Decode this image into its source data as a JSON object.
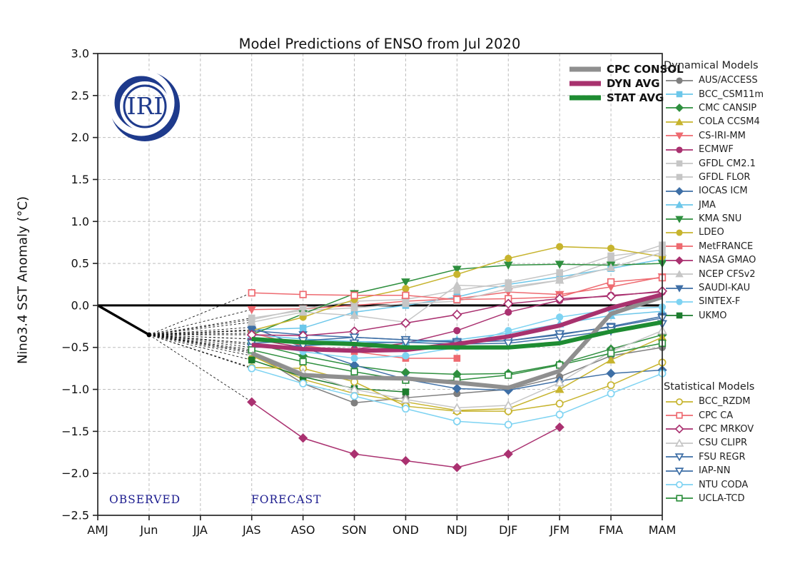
{
  "title": "Model Predictions of ENSO from Jul 2020",
  "logo_text": "IRI",
  "logo_color": "#1e3a8c",
  "labels": {
    "observed": "OBSERVED",
    "forecast": "FORECAST"
  },
  "chart_data": {
    "type": "line",
    "title": "Model Predictions of ENSO from Jul 2020",
    "xlabel": "",
    "ylabel": "Nino3.4 SST Anomaly (°C)",
    "x_categories": [
      "AMJ",
      "Jun",
      "JJA",
      "JAS",
      "ASO",
      "SON",
      "OND",
      "NDJ",
      "DJF",
      "JFM",
      "FMA",
      "MAM"
    ],
    "ylim": [
      -2.5,
      3.0
    ],
    "ytick_labels": [
      "3.0",
      "2.5",
      "2.0",
      "1.5",
      "1.0",
      "0.5",
      "0.0",
      "−0.5",
      "−1.0",
      "−1.5",
      "−2.0",
      "−2.5"
    ],
    "grid": "dashed",
    "zero_line": true,
    "forecast_start_index": 3,
    "observed": {
      "x": [
        "AMJ",
        "Jun"
      ],
      "values": [
        0.0,
        -0.35
      ],
      "color": "#000000"
    },
    "averages": [
      {
        "name": "CPC CONSOL",
        "color": "#8f8f8f",
        "values": [
          -0.57,
          -0.83,
          -0.86,
          -0.87,
          -0.92,
          -0.98,
          -0.78,
          -0.1,
          0.1
        ]
      },
      {
        "name": "DYN AVG",
        "color": "#a8326e",
        "values": [
          -0.47,
          -0.52,
          -0.54,
          -0.53,
          -0.46,
          -0.37,
          -0.24,
          -0.03,
          0.13
        ]
      },
      {
        "name": "STAT AVG",
        "color": "#1e8c32",
        "values": [
          -0.4,
          -0.44,
          -0.46,
          -0.5,
          -0.5,
          -0.5,
          -0.45,
          -0.31,
          -0.2
        ]
      }
    ],
    "dynamical": {
      "header": "Dynamical Models",
      "models": [
        {
          "name": "AUS/ACCESS",
          "color": "#7f7f7f",
          "marker": "circle",
          "open": false,
          "values": [
            -0.55,
            -0.93,
            -1.16,
            -1.1,
            -1.05,
            -1.0,
            -0.85,
            -0.6,
            -0.5
          ]
        },
        {
          "name": "BCC_CSM11m",
          "color": "#6cc7ea",
          "marker": "square",
          "open": false,
          "values": [
            -0.29,
            -0.27,
            -0.08,
            0.0,
            0.1,
            0.25,
            0.34,
            0.44,
            0.55
          ]
        },
        {
          "name": "CMC CANSIP",
          "color": "#2e8f3e",
          "marker": "diamond",
          "open": false,
          "values": [
            -0.45,
            -0.6,
            -0.72,
            -0.8,
            -0.82,
            -0.81,
            -0.7,
            -0.52,
            -0.35
          ]
        },
        {
          "name": "COLA CCSM4",
          "color": "#c7b42e",
          "marker": "triangle-up",
          "open": false,
          "values": [
            -0.6,
            -0.88,
            -1.05,
            -1.15,
            -1.25,
            -1.23,
            -1.0,
            -0.65,
            -0.38
          ]
        },
        {
          "name": "CS-IRI-MM",
          "color": "#ee6a70",
          "marker": "triangle-down",
          "open": false,
          "values": [
            -0.05,
            -0.04,
            0.0,
            0.05,
            0.08,
            0.16,
            0.13,
            0.22,
            0.34
          ]
        },
        {
          "name": "ECMWF",
          "color": "#aa3170",
          "marker": "circle",
          "open": false,
          "values": [
            -0.4,
            -0.5,
            -0.52,
            -0.45,
            -0.3,
            -0.08,
            0.06,
            0.12,
            0.16
          ]
        },
        {
          "name": "GFDL CM2.1",
          "color": "#c6c6c6",
          "marker": "square",
          "open": false,
          "values": [
            -0.15,
            -0.06,
            -0.03,
            0.02,
            0.05,
            0.2,
            0.3,
            0.52,
            0.72
          ]
        },
        {
          "name": "GFDL FLOR",
          "color": "#c6c6c6",
          "marker": "square",
          "open": false,
          "values": [
            -0.17,
            -0.04,
            0.05,
            0.07,
            0.18,
            0.27,
            0.39,
            0.59,
            0.66
          ]
        },
        {
          "name": "IOCAS ICM",
          "color": "#3e6fa6",
          "marker": "diamond",
          "open": false,
          "values": [
            -0.26,
            -0.5,
            -0.71,
            -0.88,
            -0.99,
            -1.01,
            -0.9,
            -0.81,
            -0.77
          ]
        },
        {
          "name": "JMA",
          "color": "#6cc7ea",
          "marker": "triangle-up",
          "open": false,
          "values": [
            -0.35,
            -0.4,
            -0.43,
            -0.44,
            -0.41,
            -0.33,
            -0.22,
            -0.12,
            -0.07
          ]
        },
        {
          "name": "KMA SNU",
          "color": "#2e8f3e",
          "marker": "triangle-down",
          "open": false,
          "values": [
            -0.35,
            -0.1,
            0.14,
            0.28,
            0.43,
            0.48,
            0.49,
            0.48,
            0.5
          ]
        },
        {
          "name": "LDEO",
          "color": "#c7b42e",
          "marker": "circle",
          "open": false,
          "values": [
            -0.3,
            -0.14,
            0.07,
            0.2,
            0.37,
            0.56,
            0.7,
            0.68,
            0.58
          ]
        },
        {
          "name": "MetFRANCE",
          "color": "#ee6a70",
          "marker": "square",
          "open": false,
          "values": [
            -0.33,
            -0.48,
            -0.55,
            -0.63,
            -0.63
          ]
        },
        {
          "name": "NASA GMAO",
          "color": "#aa3170",
          "marker": "diamond",
          "open": false,
          "values": [
            -1.15,
            -1.58,
            -1.77,
            -1.85,
            -1.93,
            -1.77,
            -1.45
          ]
        },
        {
          "name": "NCEP CFSv2",
          "color": "#c6c6c6",
          "marker": "triangle-up",
          "open": false,
          "values": [
            -0.2,
            -0.08,
            -0.12,
            -0.2,
            0.24,
            0.22,
            0.3,
            0.45,
            0.63
          ]
        },
        {
          "name": "SAUDI-KAU",
          "color": "#3e6fa6",
          "marker": "triangle-down",
          "open": false,
          "values": [
            -0.3,
            -0.35,
            -0.38,
            -0.41,
            -0.43,
            -0.42,
            -0.35,
            -0.25,
            -0.13
          ]
        },
        {
          "name": "SINTEX-F",
          "color": "#7ed3f2",
          "marker": "circle",
          "open": false,
          "values": [
            -0.45,
            -0.55,
            -0.63,
            -0.6,
            -0.5,
            -0.3,
            -0.14,
            -0.05,
            -0.02
          ]
        },
        {
          "name": "UKMO",
          "color": "#1d7c2e",
          "marker": "square",
          "open": false,
          "values": [
            -0.65,
            -0.85,
            -0.99,
            -1.03
          ]
        }
      ]
    },
    "statistical": {
      "header": "Statistical Models",
      "models": [
        {
          "name": "BCC_RZDM",
          "color": "#c7b42e",
          "marker": "circle",
          "open": true,
          "values": [
            -0.74,
            -0.75,
            -0.91,
            -1.2,
            -1.26,
            -1.26,
            -1.17,
            -0.95,
            -0.68
          ]
        },
        {
          "name": "CPC CA",
          "color": "#ee6a70",
          "marker": "square",
          "open": true,
          "values": [
            0.15,
            0.13,
            0.12,
            0.12,
            0.07,
            0.08,
            0.1,
            0.28,
            0.33
          ]
        },
        {
          "name": "CPC MRKOV",
          "color": "#aa3170",
          "marker": "diamond",
          "open": true,
          "values": [
            -0.35,
            -0.36,
            -0.31,
            -0.21,
            -0.11,
            0.02,
            0.08,
            0.11,
            0.17
          ]
        },
        {
          "name": "CSU CLIPR",
          "color": "#c6c6c6",
          "marker": "triangle-up",
          "open": true,
          "values": [
            -0.55,
            -0.8,
            -1.0,
            -1.12,
            -1.22,
            -1.19,
            -0.92,
            -0.55,
            -0.3
          ]
        },
        {
          "name": "FSU REGR",
          "color": "#3e6fa6",
          "marker": "triangle-down",
          "open": true,
          "values": [
            -0.45,
            -0.42,
            -0.38,
            -0.41,
            -0.44,
            -0.42,
            -0.34,
            -0.26,
            -0.15
          ]
        },
        {
          "name": "IAP-NN",
          "color": "#3e6fa6",
          "marker": "triangle-down",
          "open": true,
          "values": [
            -0.5,
            -0.48,
            -0.45,
            -0.44,
            -0.46,
            -0.45,
            -0.38,
            -0.3,
            -0.22
          ]
        },
        {
          "name": "NTU CODA",
          "color": "#7ed3f2",
          "marker": "circle",
          "open": true,
          "values": [
            -0.75,
            -0.93,
            -1.08,
            -1.23,
            -1.38,
            -1.42,
            -1.3,
            -1.05,
            -0.81
          ]
        },
        {
          "name": "UCLA-TCD",
          "color": "#2e8f3e",
          "marker": "square",
          "open": true,
          "values": [
            -0.53,
            -0.67,
            -0.79,
            -0.89,
            -0.89,
            -0.83,
            -0.71,
            -0.57,
            -0.45
          ]
        }
      ]
    }
  }
}
